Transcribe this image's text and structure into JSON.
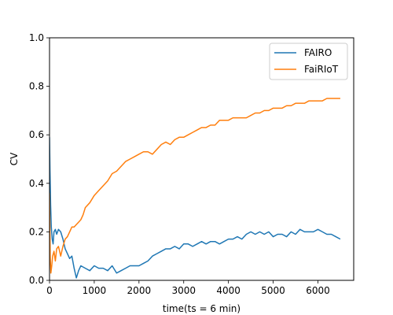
{
  "chart_data": {
    "type": "line",
    "title": "",
    "xlabel": "time(ts = 6 min)",
    "ylabel": "CV",
    "xlim": [
      0,
      6800
    ],
    "ylim": [
      0,
      1.0
    ],
    "xticks": [
      0,
      1000,
      2000,
      3000,
      4000,
      5000,
      6000
    ],
    "xtick_labels": [
      "0",
      "1000",
      "2000",
      "3000",
      "4000",
      "5000",
      "6000"
    ],
    "yticks": [
      0.0,
      0.2,
      0.4,
      0.6,
      0.8,
      1.0
    ],
    "ytick_labels": [
      "0.0",
      "0.2",
      "0.4",
      "0.6",
      "0.8",
      "1.0"
    ],
    "grid": false,
    "legend_position": "top-right",
    "series": [
      {
        "name": "FAIRO",
        "color": "#1f77b4",
        "x": [
          0,
          10,
          25,
          40,
          60,
          80,
          100,
          130,
          160,
          200,
          250,
          300,
          350,
          400,
          450,
          500,
          550,
          600,
          650,
          700,
          800,
          900,
          1000,
          1100,
          1200,
          1300,
          1400,
          1500,
          1600,
          1700,
          1800,
          1900,
          2000,
          2100,
          2200,
          2300,
          2400,
          2500,
          2600,
          2700,
          2800,
          2900,
          3000,
          3100,
          3200,
          3300,
          3400,
          3500,
          3600,
          3700,
          3800,
          3900,
          4000,
          4100,
          4200,
          4300,
          4400,
          4500,
          4600,
          4700,
          4800,
          4900,
          5000,
          5100,
          5200,
          5300,
          5400,
          5500,
          5600,
          5700,
          5800,
          5900,
          6000,
          6100,
          6200,
          6300,
          6400,
          6500
        ],
        "y": [
          0.59,
          0.45,
          0.31,
          0.22,
          0.17,
          0.15,
          0.2,
          0.21,
          0.19,
          0.21,
          0.2,
          0.17,
          0.13,
          0.11,
          0.09,
          0.1,
          0.05,
          0.01,
          0.04,
          0.06,
          0.05,
          0.04,
          0.06,
          0.05,
          0.05,
          0.04,
          0.06,
          0.03,
          0.04,
          0.05,
          0.06,
          0.06,
          0.06,
          0.07,
          0.08,
          0.1,
          0.11,
          0.12,
          0.13,
          0.13,
          0.14,
          0.13,
          0.15,
          0.15,
          0.14,
          0.15,
          0.16,
          0.15,
          0.16,
          0.16,
          0.15,
          0.16,
          0.17,
          0.17,
          0.18,
          0.17,
          0.19,
          0.2,
          0.19,
          0.2,
          0.19,
          0.2,
          0.18,
          0.19,
          0.19,
          0.18,
          0.2,
          0.19,
          0.21,
          0.2,
          0.2,
          0.2,
          0.21,
          0.2,
          0.19,
          0.19,
          0.18,
          0.17
        ]
      },
      {
        "name": "FaiRIoT",
        "color": "#ff7f0e",
        "x": [
          0,
          15,
          30,
          50,
          70,
          100,
          130,
          160,
          200,
          250,
          300,
          350,
          400,
          450,
          500,
          550,
          600,
          650,
          700,
          750,
          800,
          900,
          1000,
          1100,
          1200,
          1300,
          1400,
          1500,
          1600,
          1700,
          1800,
          1900,
          2000,
          2100,
          2200,
          2300,
          2400,
          2500,
          2600,
          2700,
          2800,
          2900,
          3000,
          3100,
          3200,
          3300,
          3400,
          3500,
          3600,
          3700,
          3800,
          3900,
          4000,
          4100,
          4200,
          4300,
          4400,
          4500,
          4600,
          4700,
          4800,
          4900,
          5000,
          5100,
          5200,
          5300,
          5400,
          5500,
          5600,
          5700,
          5800,
          5900,
          6000,
          6100,
          6200,
          6300,
          6400,
          6500
        ],
        "y": [
          0.36,
          0.1,
          0.03,
          0.06,
          0.1,
          0.12,
          0.08,
          0.13,
          0.14,
          0.1,
          0.14,
          0.17,
          0.18,
          0.2,
          0.22,
          0.22,
          0.23,
          0.24,
          0.25,
          0.27,
          0.3,
          0.32,
          0.35,
          0.37,
          0.39,
          0.41,
          0.44,
          0.45,
          0.47,
          0.49,
          0.5,
          0.51,
          0.52,
          0.53,
          0.53,
          0.52,
          0.54,
          0.56,
          0.57,
          0.56,
          0.58,
          0.59,
          0.59,
          0.6,
          0.61,
          0.62,
          0.63,
          0.63,
          0.64,
          0.64,
          0.66,
          0.66,
          0.66,
          0.67,
          0.67,
          0.67,
          0.67,
          0.68,
          0.69,
          0.69,
          0.7,
          0.7,
          0.71,
          0.71,
          0.71,
          0.72,
          0.72,
          0.73,
          0.73,
          0.73,
          0.74,
          0.74,
          0.74,
          0.74,
          0.75,
          0.75,
          0.75,
          0.75
        ]
      }
    ]
  }
}
